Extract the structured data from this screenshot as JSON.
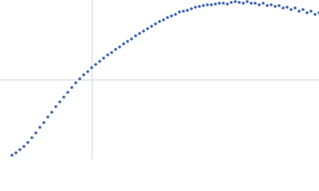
{
  "chart_data": {
    "type": "scatter",
    "color": "#3a63b0",
    "grid": true,
    "xlim": [
      0,
      400
    ],
    "ylim": [
      0,
      200
    ],
    "xticks": [
      115
    ],
    "yticks": [
      100
    ],
    "x": [
      15,
      20,
      25,
      30,
      35,
      40,
      45,
      50,
      55,
      60,
      65,
      70,
      75,
      80,
      85,
      90,
      95,
      100,
      105,
      110,
      115,
      120,
      125,
      130,
      135,
      140,
      145,
      150,
      155,
      160,
      165,
      170,
      175,
      180,
      185,
      190,
      195,
      200,
      205,
      210,
      215,
      220,
      225,
      230,
      235,
      240,
      245,
      250,
      255,
      260,
      265,
      270,
      275,
      280,
      285,
      290,
      295,
      300,
      305,
      310,
      315,
      320,
      325,
      330,
      335,
      340,
      345,
      350,
      355,
      360,
      365,
      370,
      375,
      380,
      385,
      390,
      395,
      400
    ],
    "values": [
      5,
      8,
      12,
      16,
      21,
      27,
      33,
      40,
      46,
      53,
      59,
      66,
      72,
      78,
      84,
      90,
      96,
      101,
      106,
      110,
      115,
      119,
      123,
      127,
      131,
      134,
      138,
      141,
      145,
      148,
      151,
      155,
      158,
      161,
      164,
      167,
      170,
      173,
      175,
      178,
      180,
      182,
      185,
      186,
      187,
      189,
      191,
      192,
      193,
      194,
      194,
      195,
      196,
      196,
      195,
      197,
      198,
      197,
      196,
      198,
      196,
      196,
      194,
      196,
      193,
      194,
      192,
      193,
      190,
      191,
      188,
      190,
      186,
      188,
      184,
      186,
      182,
      184
    ]
  }
}
